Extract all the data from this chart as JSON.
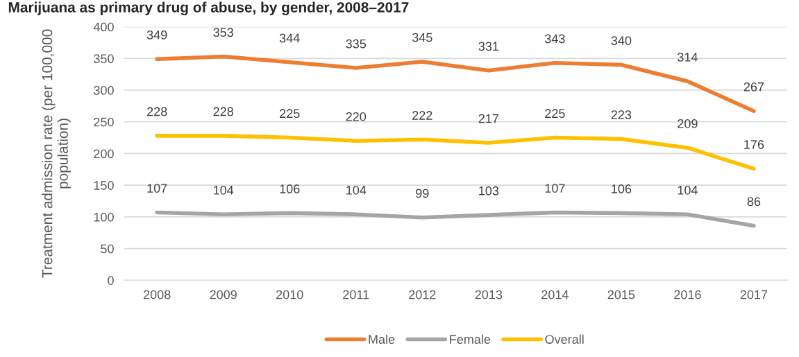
{
  "chart_data": {
    "type": "line",
    "title": "Marijuana as primary drug of abuse, by gender, 2008–2017",
    "ylabel": "Treatment admission rate (per 100,000 population)",
    "categories": [
      "2008",
      "2009",
      "2010",
      "2011",
      "2012",
      "2013",
      "2014",
      "2015",
      "2016",
      "2017"
    ],
    "series": [
      {
        "name": "Male",
        "color": "#ed7d31",
        "values": [
          349,
          353,
          344,
          335,
          345,
          331,
          343,
          340,
          314,
          267
        ]
      },
      {
        "name": "Female",
        "color": "#a5a5a5",
        "values": [
          107,
          104,
          106,
          104,
          99,
          103,
          107,
          106,
          104,
          86
        ]
      },
      {
        "name": "Overall",
        "color": "#ffc000",
        "values": [
          228,
          228,
          225,
          220,
          222,
          217,
          225,
          223,
          209,
          176
        ]
      }
    ],
    "ylim": [
      0,
      400
    ],
    "yticks": [
      0,
      50,
      100,
      150,
      200,
      250,
      300,
      350,
      400
    ],
    "grid": "y",
    "legend": "bottom",
    "data_labels": true,
    "marker": "none",
    "line_style": "solid"
  }
}
